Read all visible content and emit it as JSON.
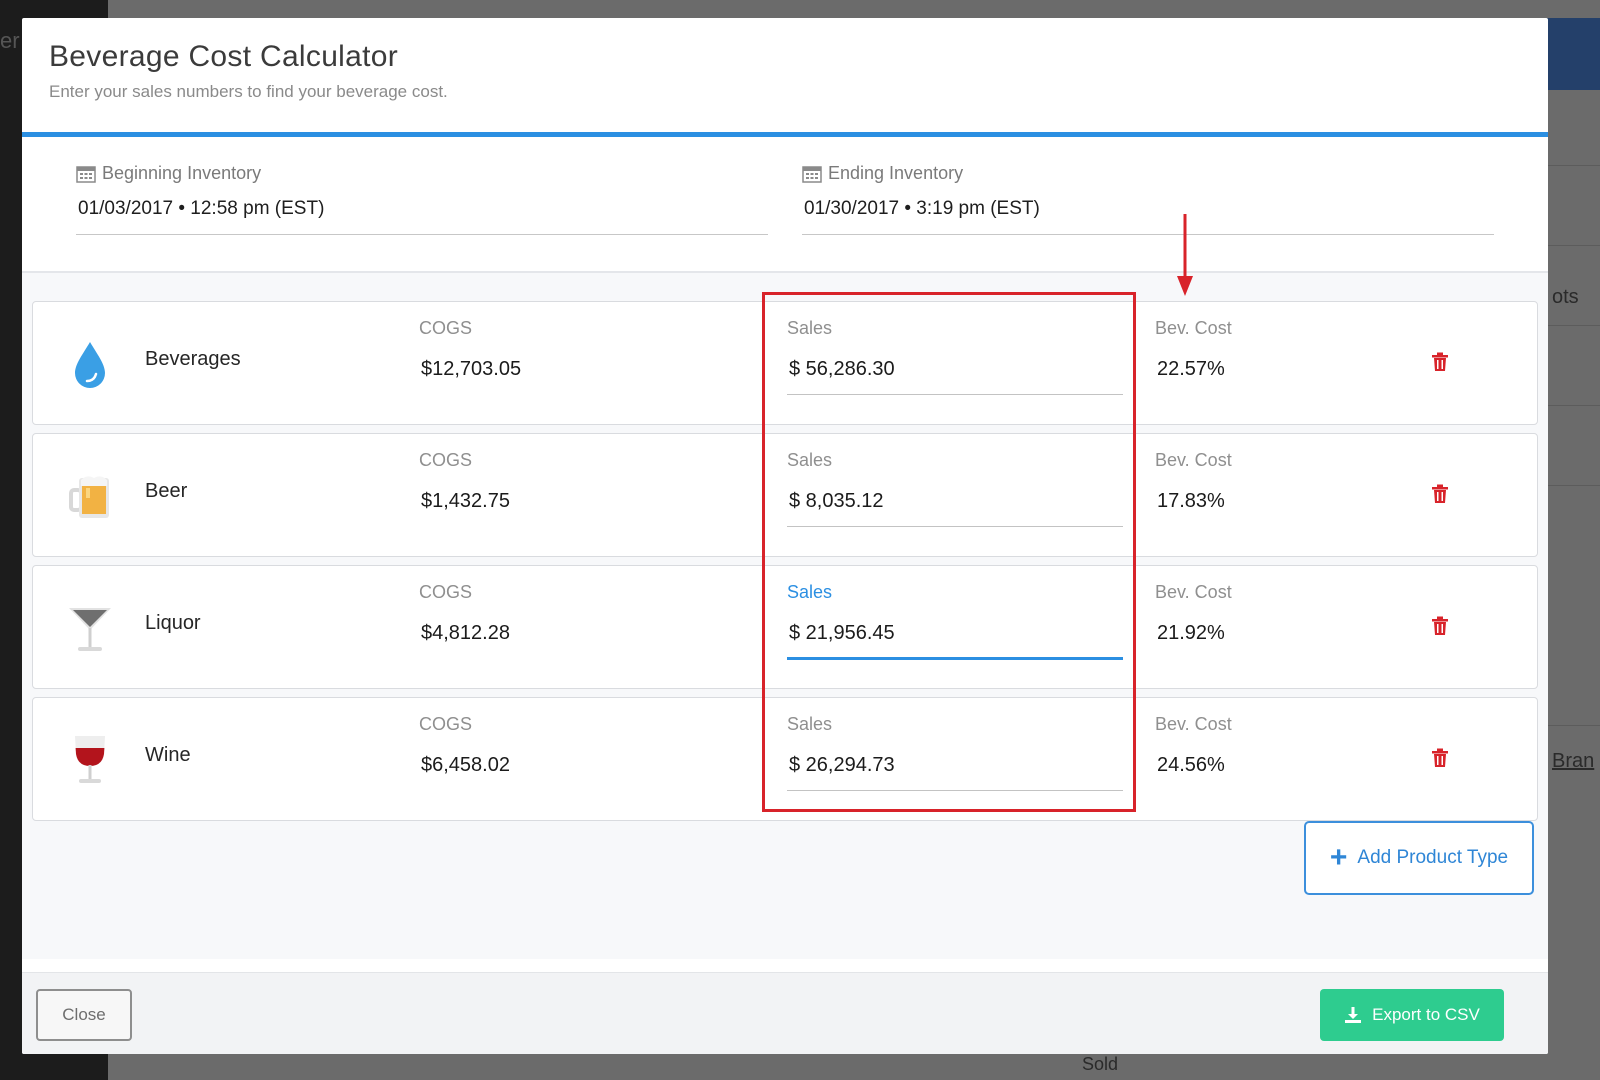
{
  "background": {
    "fragments": [
      "er",
      "ots",
      "Bran",
      "Sold"
    ]
  },
  "modal": {
    "title": "Beverage Cost Calculator",
    "subtitle": "Enter your sales numbers to find your beverage cost.",
    "accent_color": "#2b8fe2"
  },
  "inventory": {
    "beginning": {
      "label": "Beginning Inventory",
      "value": "01/03/2017 • 12:58 pm (EST)",
      "icon": "calendar-icon"
    },
    "ending": {
      "label": "Ending Inventory",
      "value": "01/30/2017 • 3:19 pm (EST)",
      "icon": "calendar-icon"
    }
  },
  "columns": {
    "cogs": "COGS",
    "sales": "Sales",
    "bev_cost": "Bev. Cost"
  },
  "products": [
    {
      "name": "Beverages",
      "icon": "water-drop-icon",
      "cogs": "$12,703.05",
      "sales": "$ 56,286.30",
      "bev_cost": "22.57%",
      "active": false
    },
    {
      "name": "Beer",
      "icon": "beer-mug-icon",
      "cogs": "$1,432.75",
      "sales": "$ 8,035.12",
      "bev_cost": "17.83%",
      "active": false
    },
    {
      "name": "Liquor",
      "icon": "martini-glass-icon",
      "cogs": "$4,812.28",
      "sales": "$ 21,956.45",
      "bev_cost": "21.92%",
      "active": true
    },
    {
      "name": "Wine",
      "icon": "wine-glass-icon",
      "cogs": "$6,458.02",
      "sales": "$ 26,294.73",
      "bev_cost": "24.56%",
      "active": false
    }
  ],
  "actions": {
    "add_product_type": "Add Product Type",
    "close": "Close",
    "export_csv": "Export to CSV"
  },
  "colors": {
    "delete": "#d8232a",
    "export": "#2ecc8f",
    "annotation": "#d8232a"
  }
}
